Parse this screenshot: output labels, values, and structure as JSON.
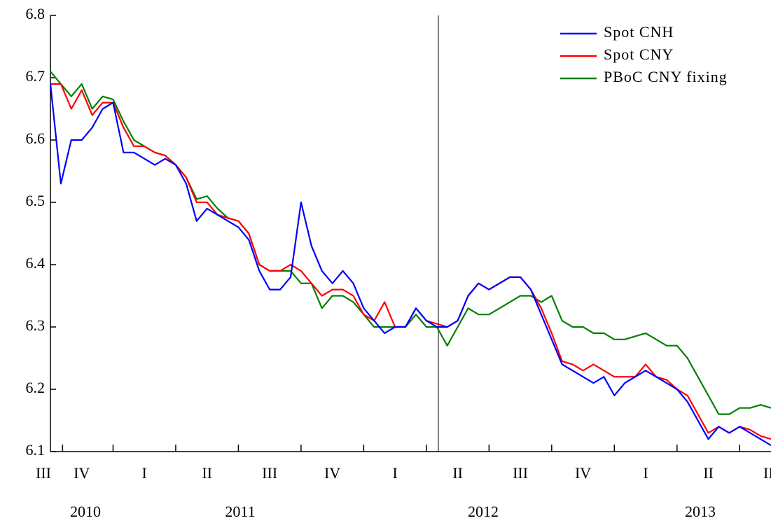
{
  "chart_data": {
    "type": "line",
    "categories": [
      "III",
      null,
      null,
      "IV",
      null,
      null,
      null,
      null,
      null,
      "I",
      null,
      null,
      null,
      null,
      null,
      "II",
      null,
      null,
      null,
      null,
      null,
      "III",
      null,
      null,
      null,
      null,
      null,
      "IV",
      null,
      null,
      null,
      null,
      null,
      "I",
      null,
      null,
      null,
      null,
      null,
      "II",
      null,
      null,
      null,
      null,
      null,
      "III",
      null,
      null,
      null,
      null,
      null,
      "IV",
      null,
      null,
      null,
      null,
      null,
      "I",
      null,
      null,
      null,
      null,
      null,
      "II",
      null,
      null,
      null,
      null,
      null,
      "III"
    ],
    "years": [
      "2010",
      "2011",
      "2012",
      "2013"
    ],
    "series": [
      {
        "name": "Spot CNH",
        "color": "#0000ff",
        "values": [
          6.69,
          6.53,
          6.6,
          6.6,
          6.62,
          6.65,
          6.66,
          6.58,
          6.58,
          6.57,
          6.56,
          6.57,
          6.56,
          6.53,
          6.47,
          6.49,
          6.48,
          6.47,
          6.46,
          6.44,
          6.39,
          6.36,
          6.36,
          6.38,
          6.5,
          6.43,
          6.39,
          6.37,
          6.39,
          6.37,
          6.33,
          6.31,
          6.29,
          6.3,
          6.3,
          6.33,
          6.31,
          6.3,
          6.3,
          6.31,
          6.35,
          6.37,
          6.36,
          6.37,
          6.38,
          6.38,
          6.36,
          6.32,
          6.28,
          6.24,
          6.23,
          6.22,
          6.21,
          6.22,
          6.19,
          6.21,
          6.22,
          6.23,
          6.22,
          6.21,
          6.2,
          6.18,
          6.15,
          6.12,
          6.14,
          6.13,
          6.14,
          6.13,
          6.12,
          6.11
        ]
      },
      {
        "name": "Spot CNY",
        "color": "#ff0000",
        "values": [
          6.69,
          6.69,
          6.65,
          6.68,
          6.64,
          6.66,
          6.66,
          6.62,
          6.59,
          6.59,
          6.58,
          6.575,
          6.56,
          6.54,
          6.5,
          6.5,
          6.48,
          6.475,
          6.47,
          6.45,
          6.4,
          6.39,
          6.39,
          6.4,
          6.39,
          6.37,
          6.35,
          6.36,
          6.36,
          6.35,
          6.32,
          6.31,
          6.34,
          6.3,
          6.3,
          6.33,
          6.31,
          6.305,
          6.3,
          6.31,
          6.35,
          6.37,
          6.36,
          6.37,
          6.38,
          6.38,
          6.36,
          6.33,
          6.29,
          6.245,
          6.24,
          6.23,
          6.24,
          6.23,
          6.22,
          6.22,
          6.22,
          6.24,
          6.22,
          6.215,
          6.2,
          6.19,
          6.16,
          6.13,
          6.14,
          6.13,
          6.14,
          6.135,
          6.125,
          6.12
        ]
      },
      {
        "name": "PBoC CNY fixing",
        "color": "#008000",
        "values": [
          6.71,
          6.69,
          6.67,
          6.69,
          6.65,
          6.67,
          6.665,
          6.63,
          6.6,
          6.59,
          6.58,
          6.575,
          6.56,
          6.54,
          6.505,
          6.51,
          6.49,
          6.475,
          6.47,
          6.45,
          6.4,
          6.39,
          6.39,
          6.39,
          6.37,
          6.37,
          6.33,
          6.35,
          6.35,
          6.34,
          6.32,
          6.3,
          6.3,
          6.3,
          6.3,
          6.32,
          6.3,
          6.3,
          6.27,
          6.3,
          6.33,
          6.32,
          6.32,
          6.33,
          6.34,
          6.35,
          6.35,
          6.34,
          6.35,
          6.31,
          6.3,
          6.3,
          6.29,
          6.29,
          6.28,
          6.28,
          6.285,
          6.29,
          6.28,
          6.27,
          6.27,
          6.25,
          6.22,
          6.19,
          6.16,
          6.16,
          6.17,
          6.17,
          6.175,
          6.17
        ]
      }
    ],
    "ylim": [
      6.1,
      6.8
    ],
    "yticks": [
      6.1,
      6.2,
      6.3,
      6.4,
      6.5,
      6.6,
      6.7,
      6.8
    ],
    "legend": "top-right"
  }
}
